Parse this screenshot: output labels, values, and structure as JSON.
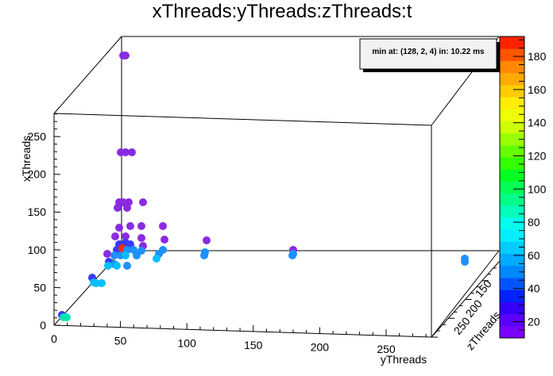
{
  "chart_data": {
    "type": "scatter",
    "title": "xThreads:yThreads:zThreads:t",
    "xlabel": "yThreads",
    "ylabel": "xThreads",
    "zlabel": "zThreads",
    "xticks": [
      "0",
      "50",
      "100",
      "150",
      "200",
      "250"
    ],
    "yticks": [
      "0",
      "50",
      "100",
      "150",
      "200",
      "250"
    ],
    "zticks": [
      "150",
      "200",
      "250"
    ],
    "x_range": [
      0,
      280
    ],
    "y_range": [
      0,
      280
    ],
    "colorbar": {
      "min": 10.22,
      "max": 192,
      "ticks": [
        "20",
        "40",
        "60",
        "80",
        "100",
        "120",
        "140",
        "160",
        "180"
      ],
      "colors": [
        "#7b00ff",
        "#5a00ff",
        "#3300ff",
        "#0022ff",
        "#0055ff",
        "#0088ff",
        "#00aaff",
        "#00ccff",
        "#00eeff",
        "#00ffee",
        "#00ffbb",
        "#00ff88",
        "#00ff55",
        "#00ff22",
        "#33ff00",
        "#66ff00",
        "#99ff00",
        "#ccff00",
        "#eeff00",
        "#ffee00",
        "#ffcc00",
        "#ffaa00",
        "#ff8800",
        "#ff5500",
        "#ff2200"
      ]
    },
    "annotation": "min at: (128, 2, 4) in: 10.22 ms",
    "points": [
      {
        "sx": 155,
        "sy": 70,
        "c": "#8a2be2"
      },
      {
        "sx": 158,
        "sy": 70,
        "c": "#8a2be2"
      },
      {
        "sx": 152,
        "sy": 192,
        "c": "#8a2be2"
      },
      {
        "sx": 158,
        "sy": 192,
        "c": "#8a2be2"
      },
      {
        "sx": 166,
        "sy": 192,
        "c": "#8a2be2"
      },
      {
        "sx": 150,
        "sy": 255,
        "c": "#8a2be2"
      },
      {
        "sx": 155,
        "sy": 255,
        "c": "#8a2be2"
      },
      {
        "sx": 162,
        "sy": 255,
        "c": "#8a2be2"
      },
      {
        "sx": 180,
        "sy": 255,
        "c": "#8a2be2"
      },
      {
        "sx": 148,
        "sy": 262,
        "c": "#8a2be2"
      },
      {
        "sx": 160,
        "sy": 262,
        "c": "#8a2be2"
      },
      {
        "sx": 150,
        "sy": 287,
        "c": "#8a2be2"
      },
      {
        "sx": 164,
        "sy": 285,
        "c": "#8a2be2"
      },
      {
        "sx": 178,
        "sy": 285,
        "c": "#8a2be2"
      },
      {
        "sx": 205,
        "sy": 285,
        "c": "#8a2be2"
      },
      {
        "sx": 145,
        "sy": 298,
        "c": "#8a2be2"
      },
      {
        "sx": 158,
        "sy": 298,
        "c": "#8a2be2"
      },
      {
        "sx": 178,
        "sy": 300,
        "c": "#8a2be2"
      },
      {
        "sx": 207,
        "sy": 302,
        "c": "#8a2be2"
      },
      {
        "sx": 260,
        "sy": 303,
        "c": "#8a2be2"
      },
      {
        "sx": 150,
        "sy": 308,
        "c": "#3a3aff"
      },
      {
        "sx": 158,
        "sy": 306,
        "c": "#3a3aff"
      },
      {
        "sx": 164,
        "sy": 308,
        "c": "#3a3aff"
      },
      {
        "sx": 180,
        "sy": 310,
        "c": "#8a2be2"
      },
      {
        "sx": 147,
        "sy": 315,
        "c": "#3a3aff"
      },
      {
        "sx": 154,
        "sy": 313,
        "c": "#ff2a00"
      },
      {
        "sx": 160,
        "sy": 315,
        "c": "#1e90ff"
      },
      {
        "sx": 168,
        "sy": 315,
        "c": "#1e90ff"
      },
      {
        "sx": 178,
        "sy": 316,
        "c": "#1e90ff"
      },
      {
        "sx": 205,
        "sy": 315,
        "c": "#1e90ff"
      },
      {
        "sx": 258,
        "sy": 318,
        "c": "#1e90ff"
      },
      {
        "sx": 369,
        "sy": 315,
        "c": "#8a2be2"
      },
      {
        "sx": 369,
        "sy": 320,
        "c": "#1e90ff"
      },
      {
        "sx": 135,
        "sy": 320,
        "c": "#8a2be2"
      },
      {
        "sx": 144,
        "sy": 322,
        "c": "#1e90ff"
      },
      {
        "sx": 152,
        "sy": 322,
        "c": "#1e90ff"
      },
      {
        "sx": 158,
        "sy": 322,
        "c": "#00bfff"
      },
      {
        "sx": 172,
        "sy": 322,
        "c": "#1e90ff"
      },
      {
        "sx": 200,
        "sy": 320,
        "c": "#1e90ff"
      },
      {
        "sx": 257,
        "sy": 322,
        "c": "#1e90ff"
      },
      {
        "sx": 368,
        "sy": 322,
        "c": "#1e90ff"
      },
      {
        "sx": 585,
        "sy": 326,
        "c": "#1e90ff"
      },
      {
        "sx": 585,
        "sy": 330,
        "c": "#1e90ff"
      },
      {
        "sx": 137,
        "sy": 330,
        "c": "#3a3aff"
      },
      {
        "sx": 144,
        "sy": 333,
        "c": "#1e90ff"
      },
      {
        "sx": 197,
        "sy": 326,
        "c": "#00bfff"
      },
      {
        "sx": 136,
        "sy": 335,
        "c": "#00bfff"
      },
      {
        "sx": 147,
        "sy": 335,
        "c": "#00bfff"
      },
      {
        "sx": 160,
        "sy": 335,
        "c": "#1e90ff"
      },
      {
        "sx": 116,
        "sy": 350,
        "c": "#3a3aff"
      },
      {
        "sx": 118,
        "sy": 356,
        "c": "#00bfff"
      },
      {
        "sx": 121,
        "sy": 357,
        "c": "#00bfff"
      },
      {
        "sx": 128,
        "sy": 357,
        "c": "#00bfff"
      },
      {
        "sx": 78,
        "sy": 397,
        "c": "#3a3aff"
      },
      {
        "sx": 80,
        "sy": 400,
        "c": "#00e5b0"
      },
      {
        "sx": 84,
        "sy": 400,
        "c": "#00e5b0"
      }
    ]
  }
}
